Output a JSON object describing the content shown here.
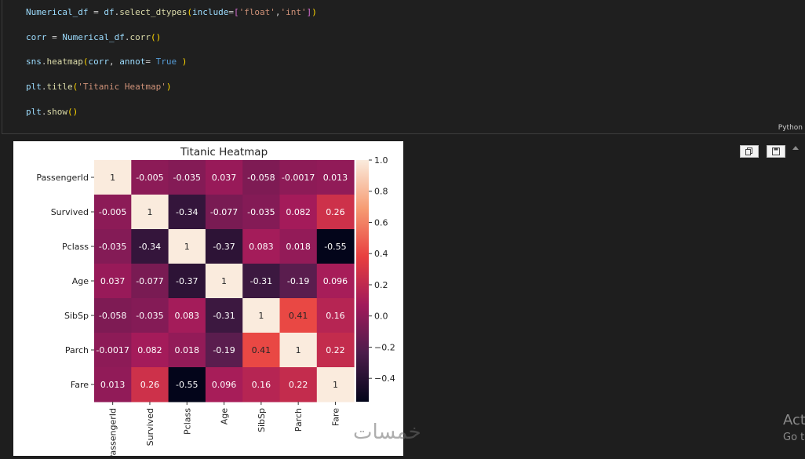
{
  "code_cell": {
    "lines": [
      [
        {
          "t": "Numerical_df",
          "c": "var"
        },
        {
          "t": " = ",
          "c": "op"
        },
        {
          "t": "df",
          "c": "var"
        },
        {
          "t": ".",
          "c": "op"
        },
        {
          "t": "select_dtypes",
          "c": "fn"
        },
        {
          "t": "(",
          "c": "par"
        },
        {
          "t": "include",
          "c": "var"
        },
        {
          "t": "=",
          "c": "op"
        },
        {
          "t": "[",
          "c": "brk"
        },
        {
          "t": "'float'",
          "c": "str"
        },
        {
          "t": ",",
          "c": "op"
        },
        {
          "t": "'int'",
          "c": "str"
        },
        {
          "t": "]",
          "c": "brk"
        },
        {
          "t": ")",
          "c": "par"
        }
      ],
      [
        {
          "t": "corr",
          "c": "var"
        },
        {
          "t": " = ",
          "c": "op"
        },
        {
          "t": "Numerical_df",
          "c": "var"
        },
        {
          "t": ".",
          "c": "op"
        },
        {
          "t": "corr",
          "c": "fn"
        },
        {
          "t": "()",
          "c": "par"
        }
      ],
      [
        {
          "t": "sns",
          "c": "var"
        },
        {
          "t": ".",
          "c": "op"
        },
        {
          "t": "heatmap",
          "c": "fn"
        },
        {
          "t": "(",
          "c": "par"
        },
        {
          "t": "corr",
          "c": "var"
        },
        {
          "t": ", ",
          "c": "op"
        },
        {
          "t": "annot",
          "c": "var"
        },
        {
          "t": "= ",
          "c": "op"
        },
        {
          "t": "True",
          "c": "kw"
        },
        {
          "t": " ",
          "c": "op"
        },
        {
          "t": ")",
          "c": "par"
        }
      ],
      [
        {
          "t": "plt",
          "c": "var"
        },
        {
          "t": ".",
          "c": "op"
        },
        {
          "t": "title",
          "c": "fn"
        },
        {
          "t": "(",
          "c": "par"
        },
        {
          "t": "'Titanic Heatmap'",
          "c": "str"
        },
        {
          "t": ")",
          "c": "par"
        }
      ],
      [
        {
          "t": "plt",
          "c": "var"
        },
        {
          "t": ".",
          "c": "op"
        },
        {
          "t": "show",
          "c": "fn"
        },
        {
          "t": "()",
          "c": "par"
        }
      ]
    ],
    "language": "Python"
  },
  "watermark": "خمسات",
  "activate": {
    "title": "Act",
    "subtitle": "Go t"
  },
  "icons": {
    "copy": "copy-icon",
    "save": "save-icon",
    "scroll_up": "chevron-up-icon"
  },
  "chart_data": {
    "type": "heatmap",
    "title": "Titanic Heatmap",
    "labels": [
      "PassengerId",
      "Survived",
      "Pclass",
      "Age",
      "SibSp",
      "Parch",
      "Fare"
    ],
    "matrix": [
      [
        1,
        -0.005,
        -0.035,
        0.037,
        -0.058,
        -0.0017,
        0.013
      ],
      [
        -0.005,
        1,
        -0.34,
        -0.077,
        -0.035,
        0.082,
        0.26
      ],
      [
        -0.035,
        -0.34,
        1,
        -0.37,
        0.083,
        0.018,
        -0.55
      ],
      [
        0.037,
        -0.077,
        -0.37,
        1,
        -0.31,
        -0.19,
        0.096
      ],
      [
        -0.058,
        -0.035,
        0.083,
        -0.31,
        1,
        0.41,
        0.16
      ],
      [
        -0.0017,
        0.082,
        0.018,
        -0.19,
        0.41,
        1,
        0.22
      ],
      [
        0.013,
        0.26,
        -0.55,
        0.096,
        0.16,
        0.22,
        1
      ]
    ],
    "annotations": [
      [
        "1",
        "-0.005",
        "-0.035",
        "0.037",
        "-0.058",
        "-0.0017",
        "0.013"
      ],
      [
        "-0.005",
        "1",
        "-0.34",
        "-0.077",
        "-0.035",
        "0.082",
        "0.26"
      ],
      [
        "-0.035",
        "-0.34",
        "1",
        "-0.37",
        "0.083",
        "0.018",
        "-0.55"
      ],
      [
        "0.037",
        "-0.077",
        "-0.37",
        "1",
        "-0.31",
        "-0.19",
        "0.096"
      ],
      [
        "-0.058",
        "-0.035",
        "0.083",
        "-0.31",
        "1",
        "0.41",
        "0.16"
      ],
      [
        "-0.0017",
        "0.082",
        "0.018",
        "-0.19",
        "0.41",
        "1",
        "0.22"
      ],
      [
        "0.013",
        "0.26",
        "-0.55",
        "0.096",
        "0.16",
        "0.22",
        "1"
      ]
    ],
    "vmin": -0.55,
    "vmax": 1.0,
    "colorbar_ticks": [
      1.0,
      0.8,
      0.6,
      0.4,
      0.2,
      0.0,
      -0.2,
      -0.4
    ],
    "colorbar_tick_labels": [
      "1.0",
      "0.8",
      "0.6",
      "0.4",
      "0.2",
      "0.0",
      "−0.2",
      "−0.4"
    ],
    "colormap": "rocket",
    "colormap_stops": [
      "#03051a",
      "#4c1d4b",
      "#a11a5b",
      "#e83f3f",
      "#f69c73",
      "#faebdd"
    ]
  }
}
